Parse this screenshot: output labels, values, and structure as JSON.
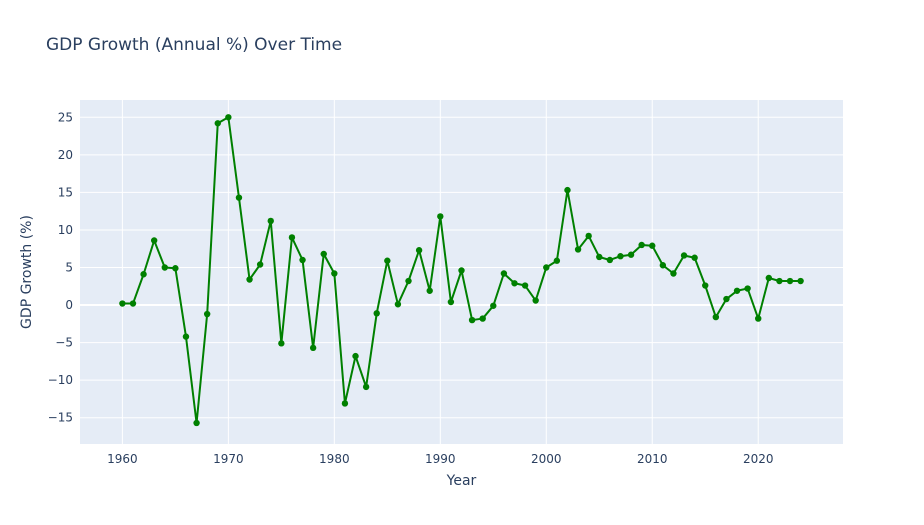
{
  "chart_data": {
    "type": "line",
    "title": "GDP Growth (Annual %) Over Time",
    "xlabel": "Year",
    "ylabel": "GDP Growth (%)",
    "xlim": [
      1956,
      2028
    ],
    "ylim": [
      -18.5,
      27.3
    ],
    "xticks": [
      1960,
      1970,
      1980,
      1990,
      2000,
      2010,
      2020
    ],
    "yticks": [
      -15,
      -10,
      -5,
      0,
      5,
      10,
      15,
      20,
      25
    ],
    "ytick_labels": [
      "−15",
      "−10",
      "−5",
      "0",
      "5",
      "10",
      "15",
      "20",
      "25"
    ],
    "grid": true,
    "legend": "none",
    "colors": {
      "line": "#008000",
      "plot_bg": "#e5ecf6",
      "grid": "#ffffff",
      "text": "#2a3f5f"
    },
    "series": [
      {
        "x": [
          1960,
          1961,
          1962,
          1963,
          1964,
          1965,
          1966,
          1967,
          1968,
          1969,
          1970,
          1971,
          1972,
          1973,
          1974,
          1975,
          1976,
          1977,
          1978,
          1979,
          1980,
          1981,
          1982,
          1983,
          1984,
          1985,
          1986,
          1987,
          1988,
          1989,
          1990,
          1991,
          1992,
          1993,
          1994,
          1995,
          1996,
          1997,
          1998,
          1999,
          2000,
          2001,
          2002,
          2003,
          2004,
          2005,
          2006,
          2007,
          2008,
          2009,
          2010,
          2011,
          2012,
          2013,
          2014,
          2015,
          2016,
          2017,
          2018,
          2019,
          2020,
          2021,
          2022,
          2023,
          2024
        ],
        "values": [
          0.2,
          0.2,
          4.1,
          8.6,
          5.0,
          4.9,
          -4.2,
          -15.7,
          -1.2,
          24.2,
          25.0,
          14.3,
          3.4,
          5.4,
          11.2,
          -5.1,
          9.0,
          6.0,
          -5.7,
          6.8,
          4.2,
          -13.1,
          -6.8,
          -10.9,
          -1.1,
          5.9,
          0.1,
          3.2,
          7.3,
          1.9,
          11.8,
          0.4,
          4.6,
          -2.0,
          -1.8,
          -0.1,
          4.2,
          2.9,
          2.6,
          0.6,
          5.0,
          5.9,
          15.3,
          7.4,
          9.2,
          6.4,
          6.0,
          6.5,
          6.7,
          8.0,
          7.9,
          5.3,
          4.2,
          6.6,
          6.3,
          2.6,
          -1.6,
          0.8,
          1.9,
          2.2,
          -1.8,
          3.6,
          3.2,
          3.2,
          3.2
        ]
      }
    ]
  }
}
